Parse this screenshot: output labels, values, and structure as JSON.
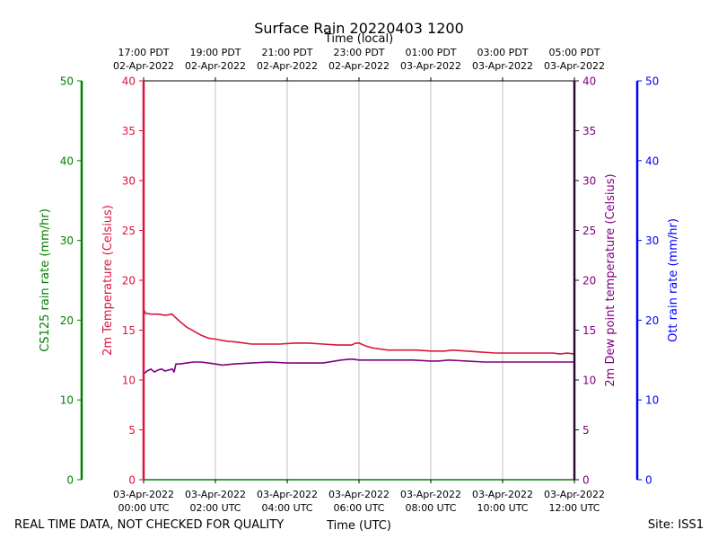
{
  "chart_data": {
    "type": "line",
    "title": "Surface Rain 20220403 1200",
    "top_axis_label": "Time (local)",
    "xlabel": "Time (UTC)",
    "footer_left": "REAL TIME DATA, NOT CHECKED FOR QUALITY",
    "footer_right": "Site: ISS1",
    "x_range_hours": [
      0,
      12
    ],
    "x_ticks_utc": [
      {
        "hour": 0,
        "line1": "03-Apr-2022",
        "line2": "00:00 UTC"
      },
      {
        "hour": 2,
        "line1": "03-Apr-2022",
        "line2": "02:00 UTC"
      },
      {
        "hour": 4,
        "line1": "03-Apr-2022",
        "line2": "04:00 UTC"
      },
      {
        "hour": 6,
        "line1": "03-Apr-2022",
        "line2": "06:00 UTC"
      },
      {
        "hour": 8,
        "line1": "03-Apr-2022",
        "line2": "08:00 UTC"
      },
      {
        "hour": 10,
        "line1": "03-Apr-2022",
        "line2": "10:00 UTC"
      },
      {
        "hour": 12,
        "line1": "03-Apr-2022",
        "line2": "12:00 UTC"
      }
    ],
    "x_ticks_local": [
      {
        "hour": 0,
        "line1": "17:00 PDT",
        "line2": "02-Apr-2022"
      },
      {
        "hour": 2,
        "line1": "19:00 PDT",
        "line2": "02-Apr-2022"
      },
      {
        "hour": 4,
        "line1": "21:00 PDT",
        "line2": "02-Apr-2022"
      },
      {
        "hour": 6,
        "line1": "23:00 PDT",
        "line2": "02-Apr-2022"
      },
      {
        "hour": 8,
        "line1": "01:00 PDT",
        "line2": "03-Apr-2022"
      },
      {
        "hour": 10,
        "line1": "03:00 PDT",
        "line2": "03-Apr-2022"
      },
      {
        "hour": 12,
        "line1": "05:00 PDT",
        "line2": "03-Apr-2022"
      }
    ],
    "axes": {
      "cs125": {
        "label": "CS125 rain rate (mm/hr)",
        "range": [
          0,
          50
        ],
        "ticks": [
          "0",
          "10",
          "20",
          "30",
          "40",
          "50"
        ],
        "color": "#008000"
      },
      "temp": {
        "label": "2m Temperature (Celsius)",
        "range": [
          0,
          40
        ],
        "ticks": [
          "0",
          "5",
          "10",
          "15",
          "20",
          "25",
          "30",
          "35",
          "40"
        ],
        "color": "#dc143c"
      },
      "dew": {
        "label": "2m Dew point temperature (Celsius)",
        "range": [
          0,
          40
        ],
        "ticks": [
          "0",
          "5",
          "10",
          "15",
          "20",
          "25",
          "30",
          "35",
          "40"
        ],
        "color": "#800080"
      },
      "ott": {
        "label": "Ott rain rate (mm/hr)",
        "range": [
          0,
          50
        ],
        "ticks": [
          "0",
          "10",
          "20",
          "30",
          "40",
          "50"
        ],
        "color": "#0000ff"
      }
    },
    "series": [
      {
        "name": "2m Temperature",
        "axis": "temp",
        "color": "#dc143c",
        "x": [
          0,
          0.05,
          0.2,
          0.4,
          0.6,
          0.8,
          0.85,
          1.0,
          1.2,
          1.4,
          1.6,
          1.8,
          2.0,
          2.3,
          2.6,
          3.0,
          3.4,
          3.8,
          4.2,
          4.6,
          5.0,
          5.4,
          5.8,
          5.9,
          6.0,
          6.2,
          6.4,
          6.8,
          7.2,
          7.6,
          8.0,
          8.4,
          8.6,
          9.0,
          9.4,
          9.8,
          10.2,
          10.6,
          11.0,
          11.4,
          11.6,
          11.8,
          12.0
        ],
        "y": [
          17.1,
          16.7,
          16.6,
          16.6,
          16.5,
          16.6,
          16.4,
          15.9,
          15.3,
          14.9,
          14.5,
          14.2,
          14.1,
          13.9,
          13.8,
          13.6,
          13.6,
          13.6,
          13.7,
          13.7,
          13.6,
          13.5,
          13.5,
          13.7,
          13.7,
          13.4,
          13.2,
          13.0,
          13.0,
          13.0,
          12.9,
          12.9,
          13.0,
          12.9,
          12.8,
          12.7,
          12.7,
          12.7,
          12.7,
          12.7,
          12.6,
          12.7,
          12.6
        ]
      },
      {
        "name": "2m Dew point temperature",
        "axis": "dew",
        "color": "#800080",
        "x": [
          0,
          0.1,
          0.2,
          0.3,
          0.4,
          0.5,
          0.6,
          0.7,
          0.8,
          0.85,
          0.9,
          1.0,
          1.2,
          1.4,
          1.6,
          1.8,
          2.0,
          2.2,
          2.5,
          3.0,
          3.5,
          4.0,
          4.5,
          5.0,
          5.5,
          5.8,
          6.0,
          6.2,
          6.5,
          7.0,
          7.5,
          8.0,
          8.2,
          8.5,
          9.0,
          9.5,
          10.0,
          10.5,
          11.0,
          11.5,
          12.0
        ],
        "y": [
          10.6,
          10.9,
          11.1,
          10.8,
          11.0,
          11.1,
          10.9,
          11.0,
          11.1,
          10.8,
          11.6,
          11.6,
          11.7,
          11.8,
          11.8,
          11.7,
          11.6,
          11.5,
          11.6,
          11.7,
          11.8,
          11.7,
          11.7,
          11.7,
          12.0,
          12.1,
          12.0,
          12.0,
          12.0,
          12.0,
          12.0,
          11.9,
          11.9,
          12.0,
          11.9,
          11.8,
          11.8,
          11.8,
          11.8,
          11.8,
          11.8
        ]
      }
    ]
  }
}
